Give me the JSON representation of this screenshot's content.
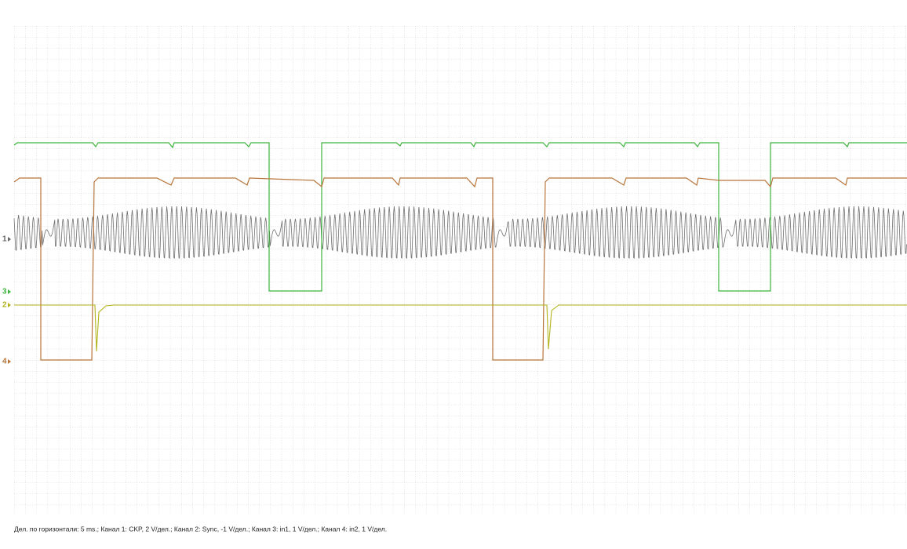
{
  "markers": [
    "1",
    "3",
    "2",
    "4"
  ],
  "caption": "Дел. по горизонтали: 5 ms.; Канал 1: CKP, 2 V/дел.; Канал 2: Sync, -1 V/дел.; Канал 3: in1, 1 V/дел.; Канал 4: in2, 1 V/дел."
}
